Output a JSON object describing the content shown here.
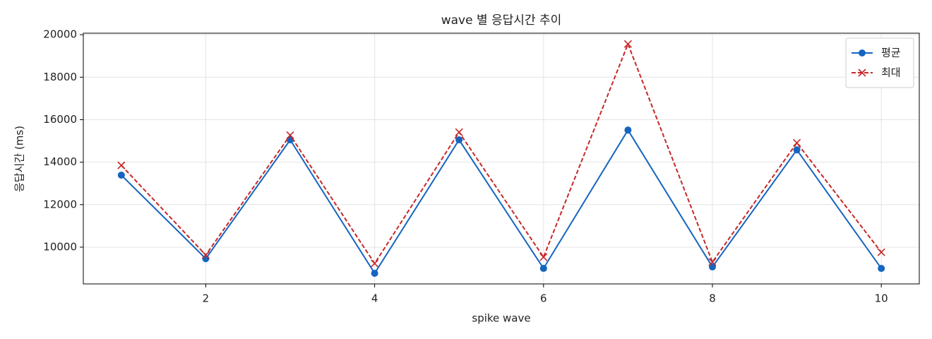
{
  "chart_data": {
    "type": "line",
    "title": "wave 별 응답시간 추이",
    "x_label": "spike wave",
    "y_label": "응답시간 (ms)",
    "x": [
      1,
      2,
      3,
      4,
      5,
      6,
      7,
      8,
      9,
      10
    ],
    "series": [
      {
        "name": "평균",
        "color": "#1565c0",
        "marker": "o",
        "dash": false,
        "values": [
          13390,
          9460,
          15050,
          8770,
          15050,
          9000,
          15510,
          9070,
          14580,
          9000
        ]
      },
      {
        "name": "최대",
        "color": "#c62828",
        "marker": "x",
        "dash": true,
        "values": [
          13850,
          9630,
          15270,
          9230,
          15410,
          9530,
          19560,
          9300,
          14910,
          9760
        ]
      }
    ],
    "xlim": [
      0.55,
      10.45
    ],
    "xticks": [
      2,
      4,
      6,
      8,
      10
    ],
    "ylim": [
      8270,
      20070
    ],
    "yticks": [
      10000,
      12000,
      14000,
      16000,
      18000,
      20000
    ],
    "grid": true,
    "legend": "upper right"
  }
}
